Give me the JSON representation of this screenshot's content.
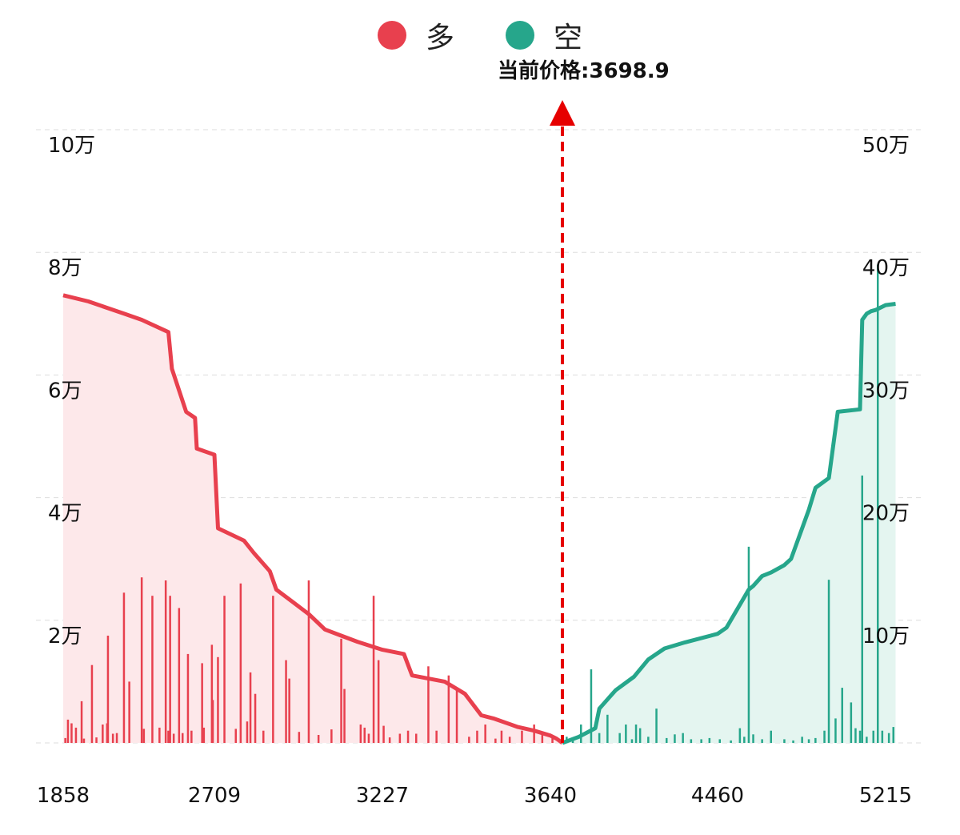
{
  "legend": [
    {
      "label": "多",
      "color": "#e8404e"
    },
    {
      "label": "空",
      "color": "#26a68b"
    }
  ],
  "current_price_label": "当前价格:3698.9",
  "colors": {
    "long": "#e8404e",
    "long_fill": "#fde8ea",
    "short": "#26a68b",
    "short_fill": "#e4f5f0",
    "marker": "#e60000",
    "grid": "#dddddd"
  },
  "chart_data": {
    "type": "area",
    "current_price": 3698.9,
    "x_ticks": [
      "1858",
      "2709",
      "3227",
      "3640",
      "4460",
      "5215"
    ],
    "y_left_ticks": [
      "2万",
      "4万",
      "6万",
      "8万",
      "10万"
    ],
    "y_right_ticks": [
      "10万",
      "20万",
      "30万",
      "40万",
      "50万"
    ],
    "y_left_range": [
      0,
      100000
    ],
    "y_right_range": [
      0,
      500000
    ],
    "grid": "horizontal-dashed",
    "legend_position": "top-center",
    "series": [
      {
        "name": "多",
        "axis": "left",
        "x": [
          1858,
          2000,
          2200,
          2300,
          2450,
          2470,
          2550,
          2600,
          2610,
          2709,
          2720,
          2800,
          2830,
          2880,
          2900,
          2950,
          3000,
          3050,
          3100,
          3150,
          3227,
          3280,
          3300,
          3380,
          3430,
          3470,
          3500,
          3560,
          3600,
          3640,
          3670,
          3698.9
        ],
        "values": [
          73000,
          72000,
          70000,
          69000,
          67000,
          61000,
          54000,
          53000,
          48000,
          47000,
          35000,
          33000,
          31000,
          28000,
          25000,
          23000,
          21000,
          18500,
          17500,
          16500,
          15200,
          14500,
          11000,
          10000,
          8000,
          4500,
          4000,
          2600,
          2000,
          1200,
          700,
          0
        ]
      },
      {
        "name": "空",
        "axis": "right",
        "x": [
          3698.9,
          3780,
          3860,
          3880,
          3960,
          4050,
          4120,
          4200,
          4300,
          4460,
          4500,
          4600,
          4620,
          4660,
          4700,
          4760,
          4790,
          4870,
          4900,
          4960,
          5000,
          5100,
          5110,
          5130,
          5150,
          5170,
          5215,
          5260
        ],
        "values": [
          0,
          5000,
          12000,
          28000,
          43000,
          54000,
          68000,
          77000,
          82000,
          89000,
          94000,
          125000,
          128000,
          136000,
          139000,
          145000,
          150000,
          190000,
          208000,
          216000,
          270000,
          272000,
          345000,
          350000,
          352000,
          353000,
          357000,
          358000
        ]
      }
    ],
    "open_interest_bars": {
      "long": {
        "x": [
          1870,
          1885,
          1905,
          1930,
          1962,
          1975,
          2020,
          2045,
          2080,
          2105,
          2110,
          2138,
          2160,
          2200,
          2230,
          2300,
          2312,
          2360,
          2400,
          2435,
          2450,
          2460,
          2480,
          2510,
          2530,
          2560,
          2580,
          2640,
          2650,
          2695,
          2700,
          2720,
          2740,
          2775,
          2790,
          2810,
          2820,
          2835,
          2860,
          2890,
          2930,
          2940,
          2970,
          3000,
          3030,
          3070,
          3100,
          3110,
          3160,
          3172,
          3185,
          3200,
          3215,
          3230,
          3245,
          3270,
          3290,
          3310,
          3340,
          3360,
          3390,
          3410,
          3440,
          3460,
          3480,
          3505,
          3520,
          3540,
          3570,
          3600,
          3620,
          3650
        ],
        "values": [
          800,
          3800,
          3200,
          2500,
          6800,
          700,
          12700,
          900,
          3000,
          3200,
          17500,
          1500,
          1600,
          24500,
          10000,
          27000,
          2300,
          24000,
          2500,
          26500,
          2000,
          24000,
          1500,
          22000,
          1600,
          14500,
          2000,
          13000,
          2500,
          16000,
          7000,
          14000,
          24000,
          2300,
          26000,
          3500,
          11500,
          8000,
          2000,
          24000,
          13500,
          10500,
          1800,
          26500,
          1300,
          2200,
          17000,
          8800,
          3000,
          2500,
          1500,
          24000,
          13500,
          2800,
          900,
          1500,
          2000,
          1500,
          12500,
          2000,
          11000,
          9000,
          1000,
          2000,
          3000,
          700,
          2000,
          1000,
          2000,
          3000,
          1500,
          1000
        ]
      },
      "short": {
        "x": [
          3720,
          3750,
          3790,
          3840,
          3880,
          3920,
          3980,
          4010,
          4040,
          4060,
          4080,
          4120,
          4160,
          4210,
          4250,
          4290,
          4330,
          4380,
          4420,
          4470,
          4520,
          4560,
          4580,
          4600,
          4620,
          4660,
          4700,
          4760,
          4800,
          4840,
          4870,
          4900,
          4940,
          4960,
          4990,
          5020,
          5060,
          5080,
          5100,
          5110,
          5130,
          5160,
          5180,
          5200,
          5230,
          5250
        ],
        "values": [
          5000,
          3000,
          15000,
          60000,
          8000,
          23000,
          8000,
          15000,
          3000,
          15000,
          12000,
          5000,
          28000,
          4000,
          7000,
          8000,
          3000,
          3000,
          4000,
          3000,
          2000,
          12000,
          5000,
          160000,
          7000,
          3000,
          10000,
          3000,
          2000,
          5000,
          3000,
          4000,
          10000,
          133000,
          20000,
          45000,
          33000,
          12000,
          10000,
          218000,
          5000,
          10000,
          390000,
          10000,
          8000,
          13000
        ]
      }
    }
  }
}
